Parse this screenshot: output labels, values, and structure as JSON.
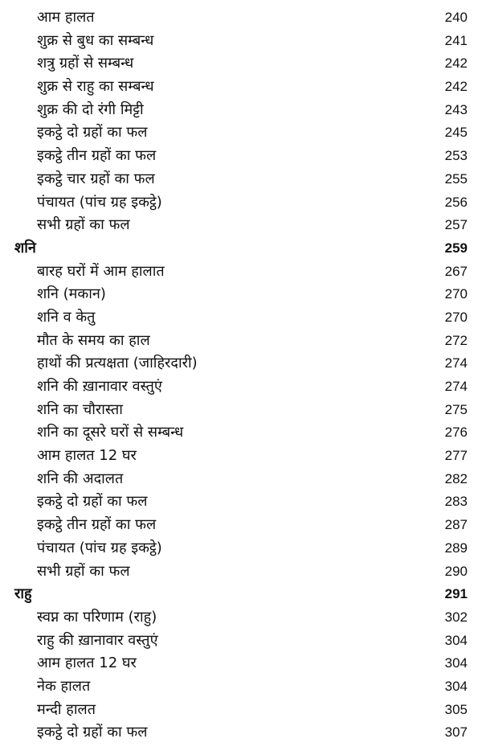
{
  "entries": [
    {
      "title": "आम हालत",
      "page": "240",
      "level": 2
    },
    {
      "title": "शुक्र से बुध का सम्बन्ध",
      "page": "241",
      "level": 2
    },
    {
      "title": "शत्रु ग्रहों से सम्बन्ध",
      "page": "242",
      "level": 2
    },
    {
      "title": "शुक्र से राहु का सम्बन्ध",
      "page": "242",
      "level": 2
    },
    {
      "title": "शुक्र की दो रंगी मिट्टी",
      "page": "243",
      "level": 2
    },
    {
      "title": "इकट्ठे दो ग्रहों का फल",
      "page": "245",
      "level": 2
    },
    {
      "title": "इकट्ठे तीन ग्रहों का फल",
      "page": "253",
      "level": 2
    },
    {
      "title": "इकट्ठे चार ग्रहों का फल",
      "page": "255",
      "level": 2
    },
    {
      "title": "पंचायत (पांच ग्रह इकट्ठे)",
      "page": "256",
      "level": 2
    },
    {
      "title": "सभी ग्रहों का फल",
      "page": "257",
      "level": 2
    },
    {
      "title": "शनि",
      "page": "259",
      "level": 1
    },
    {
      "title": "बारह घरों में आम हालात",
      "page": "267",
      "level": 2
    },
    {
      "title": "शनि (मकान)",
      "page": "270",
      "level": 2
    },
    {
      "title": "शनि व केतु",
      "page": "270",
      "level": 2
    },
    {
      "title": "मौत के समय का हाल",
      "page": "272",
      "level": 2
    },
    {
      "title": "हाथों की प्रत्यक्षता (जाहिरदारी)",
      "page": "274",
      "level": 2
    },
    {
      "title": "शनि की ख़ानावार वस्तुएं",
      "page": "274",
      "level": 2
    },
    {
      "title": "शनि का चौरास्ता",
      "page": "275",
      "level": 2
    },
    {
      "title": "शनि का दूसरे घरों से सम्बन्ध",
      "page": "276",
      "level": 2
    },
    {
      "title": "आम हालत 12 घर",
      "page": "277",
      "level": 2
    },
    {
      "title": "शनि की अदालत",
      "page": "282",
      "level": 2
    },
    {
      "title": "इकट्ठे दो ग्रहों का फल",
      "page": "283",
      "level": 2
    },
    {
      "title": "इकट्ठे तीन ग्रहों का फल",
      "page": "287",
      "level": 2
    },
    {
      "title": "पंचायत (पांच ग्रह इकट्ठे)",
      "page": "289",
      "level": 2
    },
    {
      "title": "सभी ग्रहों का फल",
      "page": "290",
      "level": 2
    },
    {
      "title": "राहु",
      "page": "291",
      "level": 1
    },
    {
      "title": "स्वप्न का परिणाम (राहु)",
      "page": "302",
      "level": 2
    },
    {
      "title": "राहु की ख़ानावार वस्तुएं",
      "page": "304",
      "level": 2
    },
    {
      "title": "आम हालत 12 घर",
      "page": "304",
      "level": 2
    },
    {
      "title": "नेक हालत",
      "page": "304",
      "level": 2
    },
    {
      "title": "मन्दी हालत",
      "page": "305",
      "level": 2
    },
    {
      "title": "इकट्ठे दो ग्रहों का फल",
      "page": "307",
      "level": 2
    }
  ]
}
